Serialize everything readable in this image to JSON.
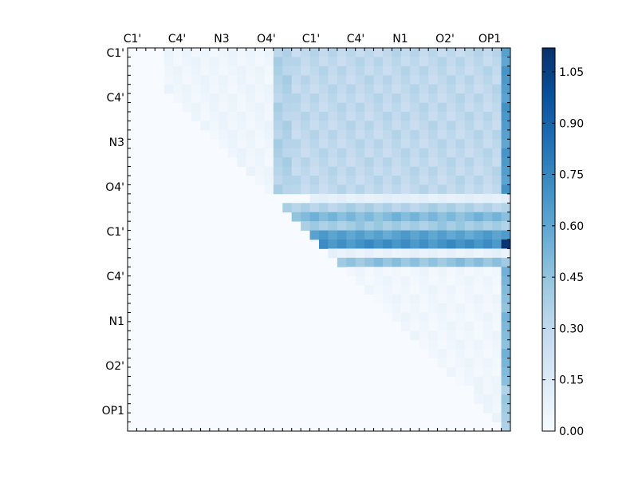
{
  "chart_data": {
    "type": "heatmap",
    "title": "",
    "xlabel": "",
    "ylabel": "",
    "x_tick_labels": [
      "C1'",
      "C4'",
      "N3",
      "O4'",
      "C1'",
      "C4'",
      "N1",
      "O2'",
      "OP1"
    ],
    "y_tick_labels": [
      "C1'",
      "C4'",
      "N3",
      "O4'",
      "C1'",
      "C4'",
      "N1",
      "O2'",
      "OP1"
    ],
    "grid_size": 42,
    "colormap": "Blues",
    "colorbar": {
      "vmin": 0.0,
      "vmax": 1.12,
      "ticks": [
        "0.00",
        "0.15",
        "0.30",
        "0.45",
        "0.60",
        "0.75",
        "0.90",
        "1.05"
      ]
    },
    "values_note": "Upper-triangular matrix; cells below the diagonal are 0.",
    "regions": [
      {
        "rows": [
          0,
          15
        ],
        "cols": [
          4,
          16
        ],
        "value": 0.05
      },
      {
        "rows": [
          0,
          15
        ],
        "cols": [
          16,
          18
        ],
        "value": 0.35
      },
      {
        "rows": [
          0,
          15
        ],
        "cols": [
          18,
          41
        ],
        "value": 0.3
      },
      {
        "rows": [
          0,
          15
        ],
        "cols": [
          41,
          42
        ],
        "value": 0.65
      },
      {
        "rows": [
          16,
          16
        ],
        "cols": [
          20,
          42
        ],
        "value": 0.1
      },
      {
        "rows": [
          17,
          17
        ],
        "cols": [
          16,
          42
        ],
        "value": 0.35
      },
      {
        "rows": [
          18,
          18
        ],
        "cols": [
          16,
          42
        ],
        "value": 0.5
      },
      {
        "rows": [
          19,
          19
        ],
        "cols": [
          18,
          42
        ],
        "value": 0.4
      },
      {
        "rows": [
          20,
          20
        ],
        "cols": [
          20,
          42
        ],
        "value": 0.62
      },
      {
        "rows": [
          21,
          21
        ],
        "cols": [
          20,
          42
        ],
        "value": 0.7
      },
      {
        "rows": [
          22,
          22
        ],
        "cols": [
          20,
          42
        ],
        "value": 0.08
      },
      {
        "rows": [
          23,
          23
        ],
        "cols": [
          20,
          42
        ],
        "value": 0.45
      },
      {
        "rows": [
          24,
          36
        ],
        "cols": [
          22,
          41
        ],
        "value": 0.04
      },
      {
        "rows": [
          24,
          36
        ],
        "cols": [
          41,
          42
        ],
        "value": 0.5
      },
      {
        "rows": [
          37,
          41
        ],
        "cols": [
          38,
          41
        ],
        "value": 0.05
      },
      {
        "rows": [
          37,
          41
        ],
        "cols": [
          41,
          42
        ],
        "value": 0.4
      }
    ],
    "peak": {
      "row": 21,
      "col": 41,
      "value": 1.1
    }
  }
}
